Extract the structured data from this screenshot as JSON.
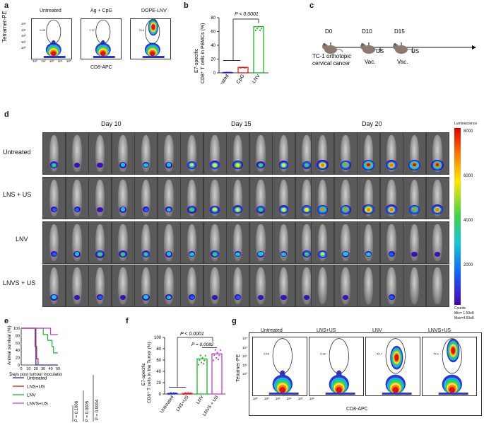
{
  "panel_a": {
    "letter": "a",
    "ylabel": "Tetramer-PE",
    "xlabel": "CD8-APC",
    "yticks": [
      "10⁵",
      "10⁴",
      "10³",
      "10²",
      "10⁰"
    ],
    "xticks": [
      "10⁰",
      "10²",
      "10³",
      "10⁴",
      "10⁵"
    ],
    "groups": [
      {
        "title": "Untreated",
        "gate": "0.29"
      },
      {
        "title": "Ag + CpG",
        "gate": "7.97"
      },
      {
        "title": "DOPE-LNV",
        "gate": "73.4"
      }
    ]
  },
  "panel_b": {
    "letter": "b",
    "ylabel_line1": "E7-specific",
    "ylabel_line2": "CD8⁺ T cells in PBMCs (%)",
    "yticks": [
      "0",
      "20",
      "40",
      "60",
      "80"
    ],
    "pvalue": "P < 0.0001",
    "chart_data": {
      "type": "bar",
      "categories": [
        "Untreated",
        "Ag + CpG",
        "DOPE-LNV"
      ],
      "values": [
        0.5,
        8,
        67
      ],
      "ylim": [
        0,
        80
      ],
      "colors": [
        "#1f2bd6",
        "#e01b1b",
        "#22b22a"
      ]
    }
  },
  "panel_c": {
    "letter": "c",
    "days": [
      "D0",
      "D10",
      "D15"
    ],
    "us_labels": [
      "US",
      "US"
    ],
    "vac_labels": [
      "Vac.",
      "Vac."
    ],
    "caption_line1": "TC-1 orthotopic",
    "caption_line2": "cervical cancer"
  },
  "panel_d": {
    "letter": "d",
    "day_labels": [
      "Day 10",
      "Day 15",
      "Day 20"
    ],
    "row_labels": [
      "Untreated",
      "LNS + US",
      "LNV",
      "LNVS + US"
    ],
    "colorbar_title": "Luminescence",
    "colorbar_ticks": [
      "8000",
      "6000",
      "4000",
      "2000"
    ],
    "counts_label": "Counts",
    "counts_min": "Min= 1.50e8",
    "counts_max": "Max=4.50e8",
    "intensity": [
      [
        [
          0.45,
          0.2,
          0.2,
          0.35,
          0.3,
          0.35
        ],
        [
          0.6,
          0.65,
          0.7,
          0.45,
          0.65,
          0.55
        ],
        [
          0.85,
          0.75,
          0.95,
          0.85,
          0.95,
          0.95
        ]
      ],
      [
        [
          0.25,
          0.25,
          0.2,
          0.35,
          0.25,
          0.3
        ],
        [
          0.55,
          0.6,
          0.65,
          0.55,
          0.65,
          0.7
        ],
        [
          0.75,
          0.75,
          0.9,
          0.85,
          0.75,
          0.85
        ]
      ],
      [
        [
          0.25,
          0.35,
          0.55,
          0.45,
          0.45,
          0.35
        ],
        [
          0.3,
          0.5,
          0.3,
          0.4,
          0.3,
          0.5
        ],
        [
          0.6,
          0.4,
          0.3,
          0.25,
          0.2,
          0.2
        ]
      ],
      [
        [
          0.35,
          0.2,
          0.25,
          0.2,
          0.4,
          0.3
        ],
        [
          0.25,
          0.2,
          0.25,
          0.2,
          0.2,
          0.2
        ],
        [
          0.0,
          0.2,
          0.0,
          0.25,
          0.0,
          0.0
        ]
      ]
    ]
  },
  "panel_e": {
    "letter": "e",
    "ylabel": "Animal survival (%)",
    "xlabel": "Days post tumour inoculation",
    "yticks": [
      "0",
      "20",
      "40",
      "60",
      "80",
      "100"
    ],
    "xticks": [
      "0",
      "10",
      "20",
      "30",
      "40",
      "50"
    ],
    "pvalues": [
      "P = 0.1006",
      "P = 0.0005",
      "P = 0.0004"
    ],
    "chart_data": {
      "type": "line",
      "xlim": [
        0,
        50
      ],
      "ylim": [
        0,
        100
      ],
      "series": [
        {
          "name": "Untreated",
          "color": "#1f2bd6",
          "x": [
            0,
            20,
            20,
            22,
            22,
            50
          ],
          "y": [
            100,
            100,
            0,
            0,
            0,
            0
          ]
        },
        {
          "name": "LNS+US",
          "color": "#e01b1b",
          "x": [
            0,
            19,
            19,
            21,
            21,
            23,
            23
          ],
          "y": [
            100,
            100,
            50,
            50,
            17,
            17,
            0
          ]
        },
        {
          "name": "LNV",
          "color": "#22b22a",
          "x": [
            0,
            30,
            30,
            36,
            36,
            42,
            42,
            44,
            44,
            50
          ],
          "y": [
            100,
            100,
            83,
            83,
            67,
            67,
            50,
            50,
            33,
            33
          ]
        },
        {
          "name": "LNVS+US",
          "color": "#c93bd6",
          "x": [
            0,
            40,
            40,
            50
          ],
          "y": [
            100,
            100,
            83,
            83
          ]
        }
      ]
    }
  },
  "panel_f": {
    "letter": "f",
    "ylabel_line1": "E7-specific",
    "ylabel_line2": "CD8⁺ T cells in the Tumor (%)",
    "yticks": [
      "0",
      "20",
      "40",
      "60",
      "80",
      "100"
    ],
    "pvalue_top": "P < 0.0001",
    "pvalue_inner": "P = 0.0082",
    "chart_data": {
      "type": "bar",
      "categories": [
        "Untreated",
        "LNS+US",
        "LNV",
        "LNVS + US"
      ],
      "values": [
        1,
        1,
        62,
        71
      ],
      "ylim": [
        0,
        100
      ],
      "colors": [
        "#1f2bd6",
        "#e01b1b",
        "#22b22a",
        "#c93bd6"
      ]
    }
  },
  "panel_g": {
    "letter": "g",
    "ylabel": "Tetramer-PE",
    "xlabel": "CD8-APC",
    "yticks": [
      "10⁵",
      "10⁴",
      "10³",
      "10²",
      "10⁰"
    ],
    "xticks": [
      "10⁰",
      "10²",
      "10³",
      "10⁴",
      "10⁵",
      "10⁶"
    ],
    "groups": [
      {
        "title": "Untreated",
        "gate": "0.43"
      },
      {
        "title": "LNS+US",
        "gate": "0.32"
      },
      {
        "title": "LNV",
        "gate": "54.7"
      },
      {
        "title": "LNVS+US",
        "gate": "75.1"
      }
    ]
  }
}
